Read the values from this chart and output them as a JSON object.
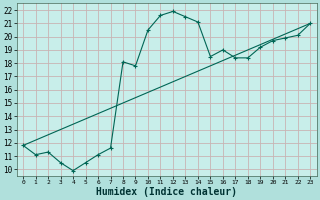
{
  "xlabel": "Humidex (Indice chaleur)",
  "bg_color": "#b0e0dc",
  "plot_bg_color": "#c8eeea",
  "line_color": "#006655",
  "grid_color": "#c0c8c0",
  "xlim": [
    -0.5,
    23.5
  ],
  "ylim": [
    9.5,
    22.5
  ],
  "xticks": [
    0,
    1,
    2,
    3,
    4,
    5,
    6,
    7,
    8,
    9,
    10,
    11,
    12,
    13,
    14,
    15,
    16,
    17,
    18,
    19,
    20,
    21,
    22,
    23
  ],
  "yticks": [
    10,
    11,
    12,
    13,
    14,
    15,
    16,
    17,
    18,
    19,
    20,
    21,
    22
  ],
  "line1_x": [
    0,
    1,
    2,
    3,
    4,
    5,
    6,
    7,
    8,
    9,
    10,
    11,
    12,
    13,
    14,
    15,
    16,
    17,
    18,
    19,
    20,
    21,
    22,
    23
  ],
  "line1_y": [
    11.8,
    11.1,
    11.3,
    10.5,
    9.9,
    10.5,
    11.1,
    11.6,
    18.1,
    17.8,
    20.5,
    21.6,
    21.9,
    21.5,
    21.1,
    18.5,
    19.0,
    18.4,
    18.4,
    19.2,
    19.7,
    19.9,
    20.1,
    21.0
  ],
  "line2_x": [
    0,
    23
  ],
  "line2_y": [
    11.8,
    21.0
  ],
  "xlabel_fontsize": 7,
  "tick_fontsize": 5.5
}
